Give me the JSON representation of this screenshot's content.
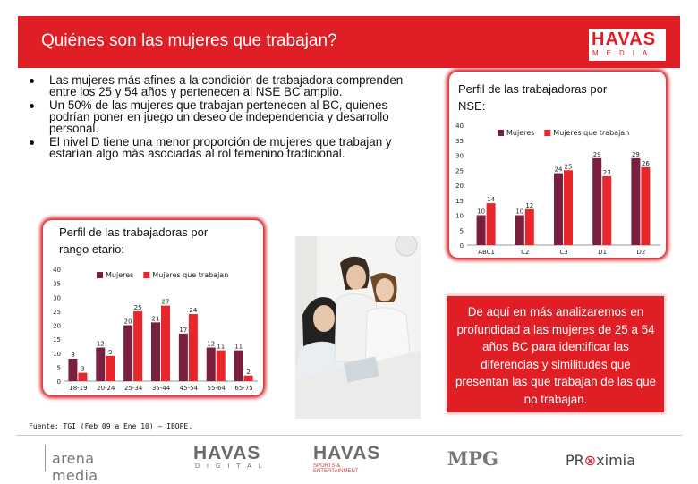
{
  "slide": {
    "title": "Quiénes son las mujeres que trabajan?",
    "brand": {
      "name": "HAVAS",
      "sub": "MEDIA"
    },
    "bullets": [
      "Las mujeres más afines a la condición de trabajadora comprenden entre los 25 y 54 años y pertenecen al NSE BC amplio.",
      "Un 50% de las mujeres que trabajan pertenecen al BC, quienes podrían poner en juego un deseo de independencia y desarrollo personal.",
      "El nivel D tiene una menor proporción de mujeres que trabajan y estarían algo más asociadas al rol femenino tradicional."
    ],
    "callout": "De aquí en más analizaremos en profundidad a las mujeres de 25 a 54 años BC para identificar las diferencias y similitudes que presentan las que trabajan de las que no trabajan.",
    "source": "Fuente: TGI (Feb 09 a Ene 10) – IBOPE.",
    "colors": {
      "accent": "#e01e26",
      "series_mujeres": "#7a1f3d",
      "series_trabajan": "#e8262b"
    }
  },
  "age_panel": {
    "title": "Perfil de las trabajadoras por rango etario:"
  },
  "nse_panel": {
    "title": "Perfil de las trabajadoras por NSE:"
  },
  "chart_data": [
    {
      "type": "bar",
      "categories": [
        "18-19",
        "20-24",
        "25-34",
        "35-44",
        "45-54",
        "55-64",
        "65-75"
      ],
      "series": [
        {
          "name": "Mujeres",
          "values": [
            8,
            12,
            20,
            21,
            17,
            12,
            11
          ]
        },
        {
          "name": "Mujeres que trabajan",
          "values": [
            3,
            9,
            25,
            27,
            24,
            11,
            2
          ]
        }
      ],
      "ylim": [
        0,
        40
      ],
      "yticks": [
        0,
        5,
        10,
        15,
        20,
        25,
        30,
        35,
        40
      ],
      "legend": "top"
    },
    {
      "type": "bar",
      "categories": [
        "ABC1",
        "C2",
        "C3",
        "D1",
        "D2"
      ],
      "series": [
        {
          "name": "Mujeres",
          "values": [
            10,
            10,
            24,
            29,
            29
          ]
        },
        {
          "name": "Mujeres que trabajan",
          "values": [
            14,
            12,
            25,
            23,
            26
          ]
        }
      ],
      "ylim": [
        0,
        40
      ],
      "yticks": [
        0,
        5,
        10,
        15,
        20,
        25,
        30,
        35,
        40
      ],
      "legend": "top"
    }
  ],
  "footer": {
    "logos": [
      "arena media",
      "HAVAS DIGITAL",
      "HAVAS SPORTS & ENTERTAINMENT",
      "MPG",
      "PROXIMIA"
    ]
  }
}
